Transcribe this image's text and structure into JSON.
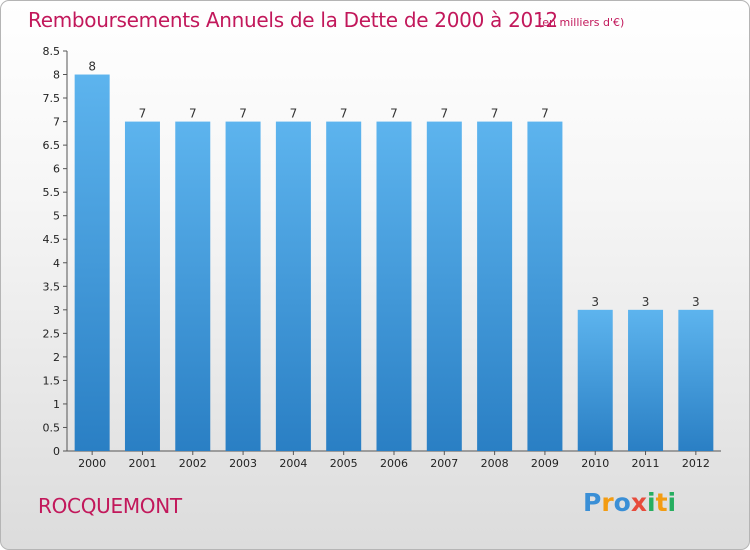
{
  "header": {
    "title": "Remboursements Annuels de la Dette de 2000 à 2012",
    "unit": "(en milliers d'€)"
  },
  "place": "ROCQUEMONT",
  "brand": {
    "letters": [
      "P",
      "r",
      "o",
      "x",
      "i",
      "t",
      "i"
    ],
    "colors": [
      "#3a8fd6",
      "#f39c12",
      "#3a8fd6",
      "#e74c3c",
      "#27ae60",
      "#f39c12",
      "#27ae60"
    ]
  },
  "chart_data": {
    "type": "bar",
    "title": "Remboursements Annuels de la Dette de 2000 à 2012",
    "categories": [
      "2000",
      "2001",
      "2002",
      "2003",
      "2004",
      "2005",
      "2006",
      "2007",
      "2008",
      "2009",
      "2010",
      "2011",
      "2012"
    ],
    "values": [
      8,
      7,
      7,
      7,
      7,
      7,
      7,
      7,
      7,
      7,
      3,
      3,
      3
    ],
    "value_labels": [
      "8",
      "7",
      "7",
      "7",
      "7",
      "7",
      "7",
      "7",
      "7",
      "7",
      "3",
      "3",
      "3"
    ],
    "ylim": [
      0,
      8.5
    ],
    "yticks": [
      "0",
      "0.5",
      "1",
      "1.5",
      "2",
      "2.5",
      "3",
      "3.5",
      "4",
      "4.5",
      "5",
      "5.5",
      "6",
      "6.5",
      "7",
      "7.5",
      "8",
      "8.5"
    ],
    "grid": false,
    "bar_color": "#4aa3e6"
  }
}
